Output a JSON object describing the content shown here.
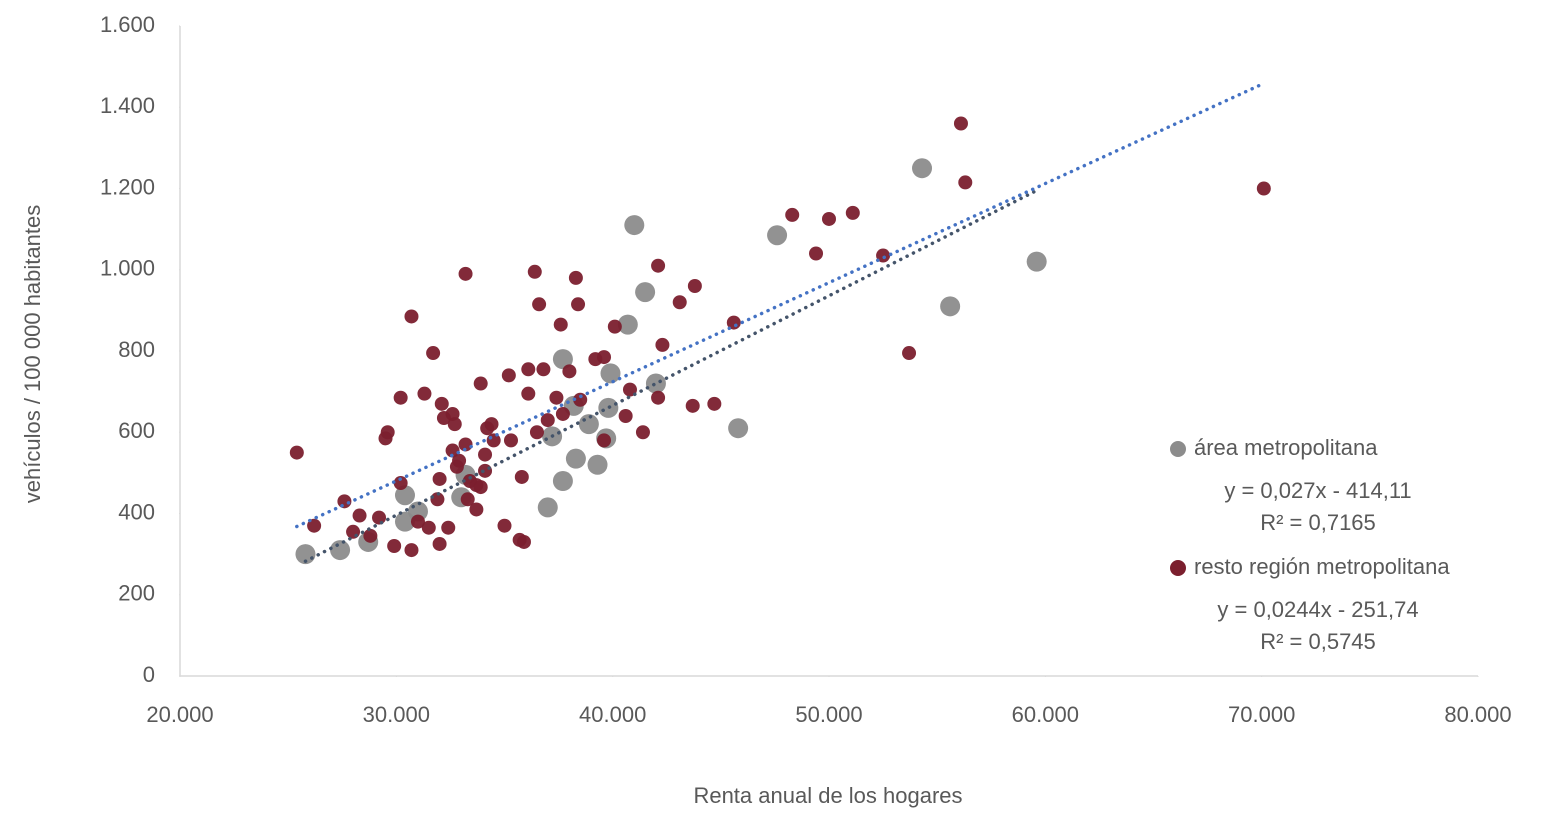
{
  "chart_data": {
    "type": "scatter",
    "x_label": "Renta anual de los hogares",
    "y_label": "vehículos / 100 000 habitantes",
    "xlim": [
      20000,
      80000
    ],
    "ylim": [
      0,
      1600
    ],
    "xticks": [
      {
        "value": 20000,
        "label": "20.000"
      },
      {
        "value": 30000,
        "label": "30.000"
      },
      {
        "value": 40000,
        "label": "40.000"
      },
      {
        "value": 50000,
        "label": "50.000"
      },
      {
        "value": 60000,
        "label": "60.000"
      },
      {
        "value": 70000,
        "label": "70.000"
      },
      {
        "value": 80000,
        "label": "80.000"
      }
    ],
    "yticks": [
      0,
      200,
      400,
      600,
      800,
      {
        "value": 1000,
        "label": "1.000"
      },
      {
        "value": 1200,
        "label": "1.200"
      },
      {
        "value": 1400,
        "label": "1.400"
      },
      {
        "value": 1600,
        "label": "1.600"
      }
    ],
    "grid": false,
    "legend": "right",
    "series": [
      {
        "name": "área metropolitana",
        "color": "#8c8c8c",
        "marker_size": 10,
        "x": [
          25800,
          27400,
          28700,
          30400,
          30400,
          31000,
          33200,
          33000,
          37000,
          37200,
          37700,
          37700,
          38300,
          38200,
          38900,
          39300,
          39700,
          39800,
          39900,
          40700,
          41000,
          41500,
          42000,
          45800,
          47600,
          54300,
          55600,
          59600
        ],
        "values": [
          300,
          310,
          330,
          445,
          380,
          405,
          495,
          440,
          415,
          590,
          480,
          780,
          535,
          665,
          620,
          520,
          585,
          660,
          745,
          865,
          1110,
          945,
          720,
          610,
          1085,
          1250,
          910,
          1020
        ],
        "trendline": {
          "color": "#44546a",
          "slope": 0.027,
          "intercept": -414.11,
          "equation": "y = 0,027x - 414,11",
          "r_squared": 0.7165,
          "r_squared_label": "R² = 0,7165"
        }
      },
      {
        "name": "resto región metropolitana",
        "color": "#7b1f2e",
        "marker_size": 7,
        "x": [
          25400,
          26200,
          27600,
          28000,
          28300,
          28800,
          29200,
          29500,
          29600,
          29900,
          30200,
          30200,
          30700,
          30700,
          31000,
          31300,
          31500,
          31700,
          31900,
          32000,
          32100,
          32200,
          32400,
          32600,
          32600,
          32700,
          32900,
          33200,
          33200,
          33300,
          33700,
          33900,
          34100,
          34200,
          34400,
          34500,
          35000,
          35200,
          35300,
          35700,
          35900,
          35800,
          36100,
          36100,
          36400,
          36500,
          36600,
          36800,
          37000,
          37400,
          37600,
          37700,
          38000,
          38300,
          38400,
          38500,
          39200,
          39600,
          39600,
          40100,
          40600,
          40800,
          41400,
          42100,
          42100,
          42300,
          43100,
          43800,
          43700,
          44700,
          45600,
          48300,
          49400,
          50000,
          51100,
          52500,
          53700,
          56100,
          56300,
          70100,
          32000,
          33700,
          34100,
          33400,
          32800,
          33900
        ],
        "values": [
          550,
          370,
          430,
          355,
          395,
          345,
          390,
          585,
          600,
          320,
          685,
          475,
          885,
          310,
          380,
          695,
          365,
          795,
          435,
          325,
          670,
          635,
          365,
          645,
          555,
          620,
          530,
          990,
          570,
          435,
          410,
          720,
          545,
          610,
          620,
          580,
          370,
          740,
          580,
          335,
          330,
          490,
          695,
          755,
          995,
          600,
          915,
          755,
          630,
          685,
          865,
          645,
          750,
          980,
          915,
          680,
          780,
          785,
          580,
          860,
          640,
          705,
          600,
          1010,
          685,
          815,
          920,
          960,
          665,
          670,
          870,
          1135,
          1040,
          1125,
          1140,
          1035,
          795,
          1360,
          1215,
          1200,
          485,
          470,
          505,
          480,
          515,
          465
        ],
        "trendline": {
          "color": "#4472c4",
          "slope": 0.0244,
          "intercept": -251.74,
          "equation": "y = 0,0244x - 251,74",
          "r_squared": 0.5745,
          "r_squared_label": "R² = 0,5745"
        }
      }
    ]
  }
}
